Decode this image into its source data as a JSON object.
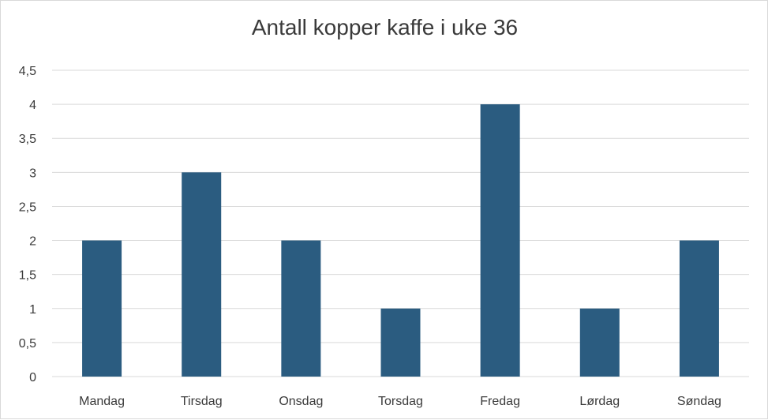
{
  "chart_data": {
    "type": "bar",
    "title": "Antall kopper kaffe i uke 36",
    "xlabel": "",
    "ylabel": "",
    "categories": [
      "Mandag",
      "Tirsdag",
      "Onsdag",
      "Torsdag",
      "Fredag",
      "Lørdag",
      "Søndag"
    ],
    "values": [
      2,
      3,
      2,
      1,
      4,
      1,
      2
    ],
    "ylim": [
      0,
      4.5
    ],
    "yticks": [
      0,
      0.5,
      1,
      1.5,
      2,
      2.5,
      3,
      3.5,
      4,
      4.5
    ],
    "ytick_labels": [
      "0",
      "0,5",
      "1",
      "1,5",
      "2",
      "2,5",
      "3",
      "3,5",
      "4",
      "4,5"
    ],
    "grid": true,
    "legend": "none",
    "colors": {
      "bar": "#2b5c80",
      "grid": "#d9d9d9",
      "text": "#3a3a3a"
    }
  }
}
